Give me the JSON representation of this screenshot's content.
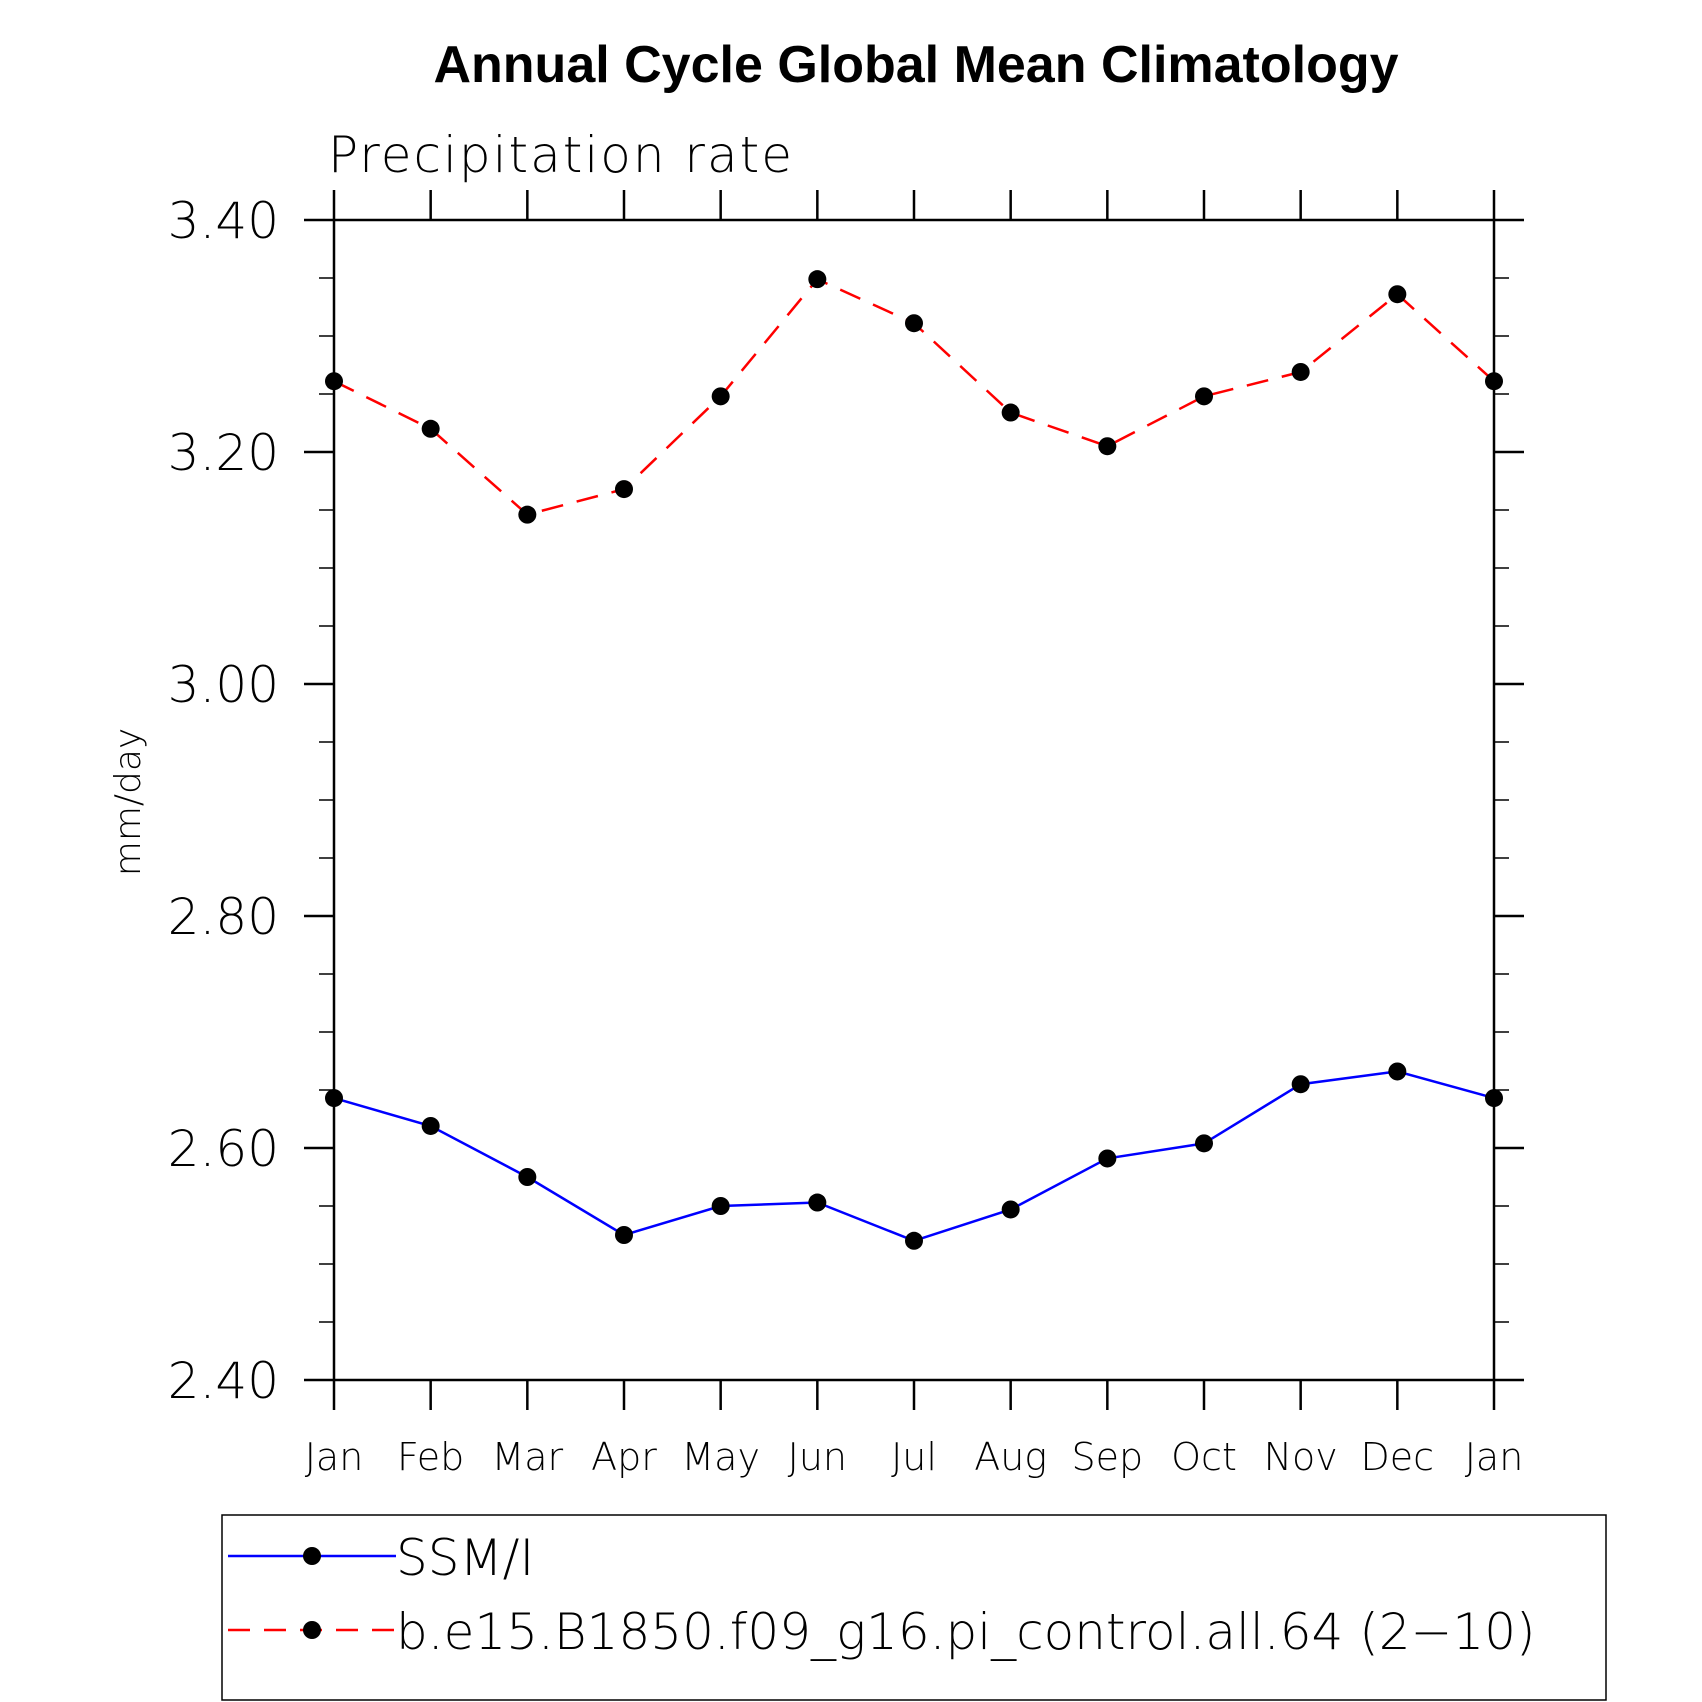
{
  "chart_data": {
    "type": "line",
    "title": "Annual Cycle Global Mean Climatology",
    "subtitle": "Precipitation rate",
    "xlabel": "",
    "ylabel": "mm/day",
    "categories": [
      "Jan",
      "Feb",
      "Mar",
      "Apr",
      "May",
      "Jun",
      "Jul",
      "Aug",
      "Sep",
      "Oct",
      "Nov",
      "Dec",
      "Jan"
    ],
    "ylim": [
      2.4,
      3.4
    ],
    "yticks": [
      "2.40",
      "2.60",
      "2.80",
      "3.00",
      "3.20",
      "3.40"
    ],
    "grid": false,
    "legend_position": "bottom",
    "series": [
      {
        "name": "SSM/I",
        "color": "#0000ff",
        "dash": "solid",
        "marker": "filled-circle",
        "values": [
          2.643,
          2.619,
          2.575,
          2.525,
          2.55,
          2.553,
          2.52,
          2.547,
          2.591,
          2.604,
          2.655,
          2.666,
          2.643
        ]
      },
      {
        "name": "b.e15.B1850.f09_g16.pi_control.all.64 (2−10)",
        "color": "#ff0000",
        "dash": "dashed",
        "marker": "filled-circle",
        "values": [
          3.261,
          3.22,
          3.146,
          3.168,
          3.248,
          3.349,
          3.311,
          3.234,
          3.205,
          3.248,
          3.269,
          3.336,
          3.261
        ]
      }
    ]
  }
}
